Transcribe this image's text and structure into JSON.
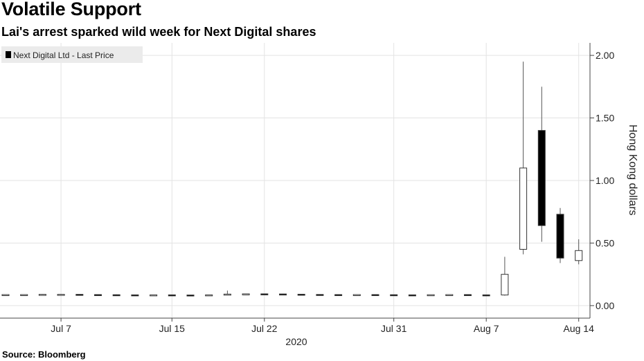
{
  "header": {
    "title": "Volatile Support",
    "subtitle": "Lai's arrest sparked wild week for Next Digital shares"
  },
  "footer": {
    "source": "Source: Bloomberg"
  },
  "chart_data": {
    "type": "candlestick",
    "legend": {
      "label": "Next Digital Ltd - Last Price",
      "placement": "top-left"
    },
    "ylabel": "Hong Kong dollars",
    "ylim": [
      -0.1,
      2.1
    ],
    "yticks": [
      "0.00",
      "0.50",
      "1.00",
      "1.50",
      "2.00"
    ],
    "ytick_values": [
      0,
      0.5,
      1.0,
      1.5,
      2.0
    ],
    "y_axis_side": "right",
    "grid": true,
    "xticks": [
      {
        "label": "Jul 7",
        "date": "2020-07-07"
      },
      {
        "label": "Jul 15",
        "date": "2020-07-15"
      },
      {
        "label": "Jul 22",
        "date": "2020-07-22"
      },
      {
        "label": "Jul 31",
        "date": "2020-07-31"
      },
      {
        "label": "Aug 7",
        "date": "2020-08-07"
      },
      {
        "label": "Aug 14",
        "date": "2020-08-14"
      }
    ],
    "year_label": "2020",
    "candles": [
      {
        "date": "2020-07-02",
        "open": 0.088,
        "high": 0.09,
        "low": 0.086,
        "close": 0.088
      },
      {
        "date": "2020-07-03",
        "open": 0.088,
        "high": 0.09,
        "low": 0.086,
        "close": 0.088
      },
      {
        "date": "2020-07-06",
        "open": 0.088,
        "high": 0.092,
        "low": 0.087,
        "close": 0.09
      },
      {
        "date": "2020-07-07",
        "open": 0.09,
        "high": 0.092,
        "low": 0.088,
        "close": 0.09
      },
      {
        "date": "2020-07-08",
        "open": 0.09,
        "high": 0.091,
        "low": 0.087,
        "close": 0.088
      },
      {
        "date": "2020-07-09",
        "open": 0.088,
        "high": 0.09,
        "low": 0.086,
        "close": 0.087
      },
      {
        "date": "2020-07-10",
        "open": 0.087,
        "high": 0.089,
        "low": 0.085,
        "close": 0.086
      },
      {
        "date": "2020-07-13",
        "open": 0.086,
        "high": 0.088,
        "low": 0.084,
        "close": 0.085
      },
      {
        "date": "2020-07-14",
        "open": 0.085,
        "high": 0.087,
        "low": 0.084,
        "close": 0.086
      },
      {
        "date": "2020-07-15",
        "open": 0.086,
        "high": 0.088,
        "low": 0.084,
        "close": 0.085
      },
      {
        "date": "2020-07-16",
        "open": 0.085,
        "high": 0.087,
        "low": 0.083,
        "close": 0.084
      },
      {
        "date": "2020-07-17",
        "open": 0.084,
        "high": 0.088,
        "low": 0.083,
        "close": 0.086
      },
      {
        "date": "2020-07-20",
        "open": 0.086,
        "high": 0.12,
        "low": 0.085,
        "close": 0.092
      },
      {
        "date": "2020-07-21",
        "open": 0.092,
        "high": 0.095,
        "low": 0.09,
        "close": 0.094
      },
      {
        "date": "2020-07-22",
        "open": 0.094,
        "high": 0.095,
        "low": 0.091,
        "close": 0.093
      },
      {
        "date": "2020-07-23",
        "open": 0.093,
        "high": 0.094,
        "low": 0.09,
        "close": 0.091
      },
      {
        "date": "2020-07-24",
        "open": 0.091,
        "high": 0.092,
        "low": 0.088,
        "close": 0.089
      },
      {
        "date": "2020-07-27",
        "open": 0.089,
        "high": 0.09,
        "low": 0.087,
        "close": 0.088
      },
      {
        "date": "2020-07-28",
        "open": 0.088,
        "high": 0.09,
        "low": 0.086,
        "close": 0.087
      },
      {
        "date": "2020-07-29",
        "open": 0.087,
        "high": 0.09,
        "low": 0.086,
        "close": 0.088
      },
      {
        "date": "2020-07-30",
        "open": 0.088,
        "high": 0.089,
        "low": 0.086,
        "close": 0.087
      },
      {
        "date": "2020-07-31",
        "open": 0.087,
        "high": 0.088,
        "low": 0.085,
        "close": 0.086
      },
      {
        "date": "2020-08-03",
        "open": 0.086,
        "high": 0.087,
        "low": 0.084,
        "close": 0.085
      },
      {
        "date": "2020-08-04",
        "open": 0.085,
        "high": 0.088,
        "low": 0.084,
        "close": 0.087
      },
      {
        "date": "2020-08-05",
        "open": 0.087,
        "high": 0.089,
        "low": 0.085,
        "close": 0.088
      },
      {
        "date": "2020-08-06",
        "open": 0.088,
        "high": 0.089,
        "low": 0.085,
        "close": 0.086
      },
      {
        "date": "2020-08-07",
        "open": 0.086,
        "high": 0.088,
        "low": 0.084,
        "close": 0.085
      },
      {
        "date": "2020-08-10",
        "open": 0.085,
        "high": 0.39,
        "low": 0.08,
        "close": 0.25
      },
      {
        "date": "2020-08-11",
        "open": 0.45,
        "high": 1.95,
        "low": 0.41,
        "close": 1.1
      },
      {
        "date": "2020-08-12",
        "open": 1.4,
        "high": 1.75,
        "low": 0.51,
        "close": 0.64
      },
      {
        "date": "2020-08-13",
        "open": 0.73,
        "high": 0.78,
        "low": 0.34,
        "close": 0.38
      },
      {
        "date": "2020-08-14",
        "open": 0.36,
        "high": 0.53,
        "low": 0.33,
        "close": 0.44
      }
    ]
  }
}
